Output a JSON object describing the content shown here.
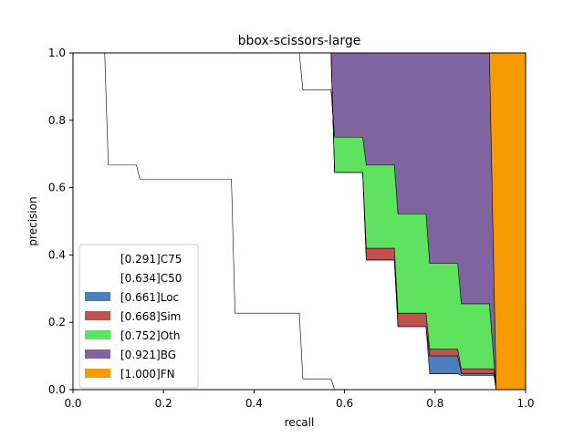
{
  "chart_data": {
    "type": "area",
    "title": "bbox-scissors-large",
    "xlabel": "recall",
    "ylabel": "precision",
    "xlim": [
      0.0,
      1.0
    ],
    "ylim": [
      0.0,
      1.0
    ],
    "x_ticks": [
      "0.0",
      "0.2",
      "0.4",
      "0.6",
      "0.8",
      "1.0"
    ],
    "y_ticks": [
      "0.0",
      "0.2",
      "0.4",
      "0.6",
      "0.8",
      "1.0"
    ],
    "grid": false,
    "legend_position": "lower-left",
    "series": [
      {
        "name": "[0.291]C75",
        "color": "#ffffff",
        "points": [
          [
            0.0,
            1.0
          ],
          [
            0.07,
            1.0
          ],
          [
            0.078,
            0.667
          ],
          [
            0.14,
            0.667
          ],
          [
            0.148,
            0.625
          ],
          [
            0.35,
            0.625
          ],
          [
            0.358,
            0.227
          ],
          [
            0.5,
            0.227
          ],
          [
            0.508,
            0.032
          ],
          [
            0.57,
            0.032
          ],
          [
            0.578,
            0.0
          ]
        ]
      },
      {
        "name": "[0.634]C50",
        "color": "#ffffff",
        "points": [
          [
            0.0,
            1.0
          ],
          [
            0.57,
            1.0
          ],
          [
            0.578,
            0.645
          ],
          [
            0.64,
            0.645
          ],
          [
            0.648,
            0.385
          ],
          [
            0.71,
            0.385
          ],
          [
            0.718,
            0.187
          ],
          [
            0.78,
            0.187
          ],
          [
            0.788,
            0.047
          ],
          [
            0.85,
            0.047
          ],
          [
            0.858,
            0.042
          ],
          [
            0.93,
            0.042
          ],
          [
            0.935,
            0.0
          ]
        ]
      },
      {
        "name": "[0.661]Loc",
        "color": "#4c7ebb",
        "points": [
          [
            0.0,
            1.0
          ],
          [
            0.57,
            1.0
          ],
          [
            0.578,
            0.645
          ],
          [
            0.64,
            0.645
          ],
          [
            0.648,
            0.385
          ],
          [
            0.71,
            0.385
          ],
          [
            0.718,
            0.187
          ],
          [
            0.78,
            0.187
          ],
          [
            0.788,
            0.1
          ],
          [
            0.85,
            0.1
          ],
          [
            0.858,
            0.048
          ],
          [
            0.93,
            0.048
          ],
          [
            0.935,
            0.0
          ]
        ]
      },
      {
        "name": "[0.668]Sim",
        "color": "#c0504d",
        "points": [
          [
            0.0,
            1.0
          ],
          [
            0.57,
            1.0
          ],
          [
            0.578,
            0.645
          ],
          [
            0.64,
            0.645
          ],
          [
            0.648,
            0.42
          ],
          [
            0.71,
            0.42
          ],
          [
            0.718,
            0.227
          ],
          [
            0.78,
            0.227
          ],
          [
            0.788,
            0.12
          ],
          [
            0.85,
            0.12
          ],
          [
            0.858,
            0.062
          ],
          [
            0.93,
            0.062
          ],
          [
            0.935,
            0.0
          ]
        ]
      },
      {
        "name": "[0.752]Oth",
        "color": "#5ee35e",
        "points": [
          [
            0.0,
            1.0
          ],
          [
            0.5,
            1.0
          ],
          [
            0.508,
            0.89
          ],
          [
            0.57,
            0.89
          ],
          [
            0.578,
            0.75
          ],
          [
            0.64,
            0.75
          ],
          [
            0.648,
            0.667
          ],
          [
            0.71,
            0.667
          ],
          [
            0.718,
            0.522
          ],
          [
            0.78,
            0.522
          ],
          [
            0.788,
            0.375
          ],
          [
            0.85,
            0.375
          ],
          [
            0.858,
            0.255
          ],
          [
            0.92,
            0.255
          ],
          [
            0.935,
            0.0
          ]
        ]
      },
      {
        "name": "[0.921]BG",
        "color": "#8064a2",
        "points": [
          [
            0.0,
            1.0
          ],
          [
            0.92,
            1.0
          ],
          [
            0.935,
            0.0
          ]
        ]
      },
      {
        "name": "[1.000]FN",
        "color": "#f79a00",
        "points": [
          [
            0.0,
            1.0
          ],
          [
            1.0,
            1.0
          ],
          [
            1.0,
            0.0
          ]
        ]
      }
    ]
  }
}
